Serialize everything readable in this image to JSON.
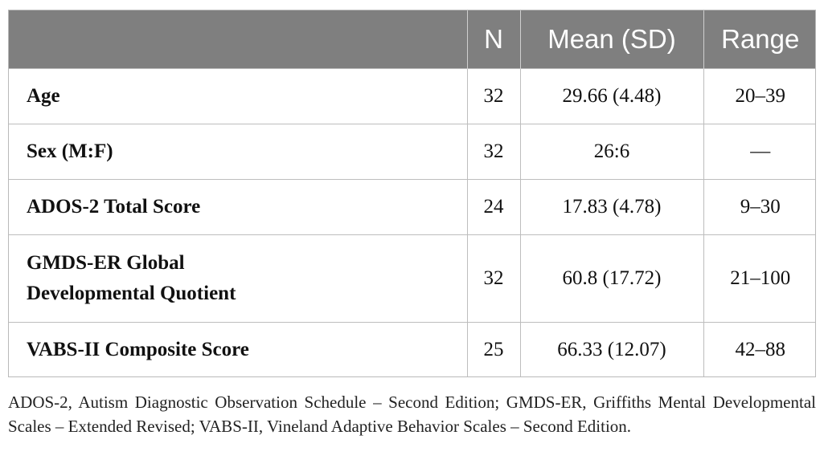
{
  "table": {
    "headers": [
      "",
      "N",
      "Mean (SD)",
      "Range"
    ],
    "rows": [
      {
        "label": "Age",
        "n": "32",
        "mean_sd": "29.66 (4.48)",
        "range": "20–39"
      },
      {
        "label": "Sex (M:F)",
        "n": "32",
        "mean_sd": "26:6",
        "range": "—"
      },
      {
        "label": "ADOS-2 Total Score",
        "n": "24",
        "mean_sd": "17.83 (4.78)",
        "range": "9–30"
      },
      {
        "label_line1": "GMDS-ER Global",
        "label_line2": "Developmental Quotient",
        "n": "32",
        "mean_sd": "60.8 (17.72)",
        "range": "21–100"
      },
      {
        "label": "VABS-II Composite Score",
        "n": "25",
        "mean_sd": "66.33 (12.07)",
        "range": "42–88"
      }
    ]
  },
  "footnote": "ADOS-2, Autism Diagnostic Observation Schedule – Second Edition; GMDS-ER, Griffiths Mental Developmental Scales – Extended Revised; VABS-II, Vineland Adaptive Behavior Scales – Second Edition.",
  "colors": {
    "header_bg": "#7f7f7f",
    "header_text": "#ffffff",
    "border": "#bdbdbd"
  }
}
